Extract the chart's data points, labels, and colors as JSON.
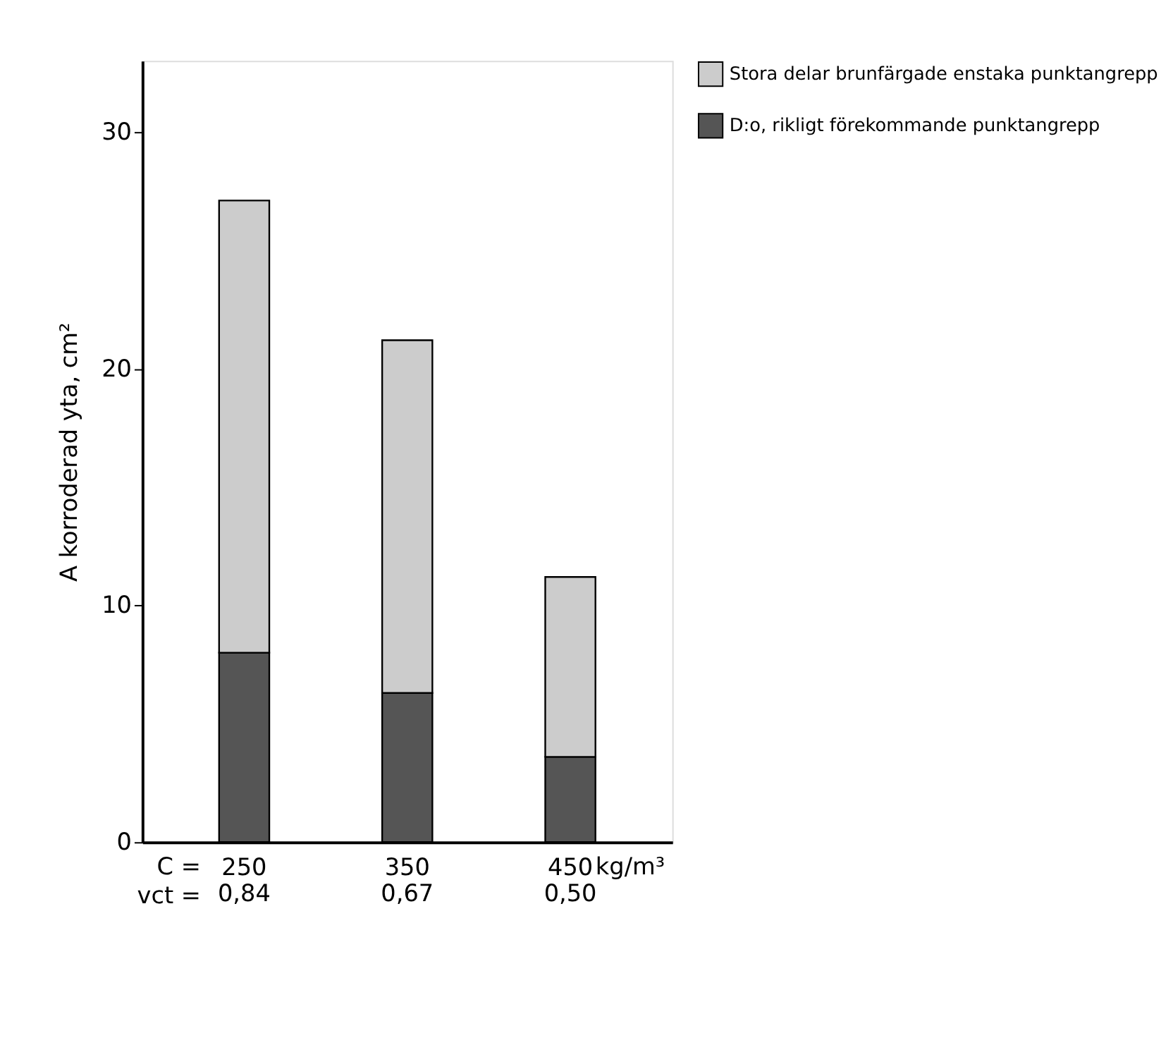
{
  "chart_data": {
    "type": "bar",
    "stacked": true,
    "ylabel": "A korroderad yta, cm²",
    "xlabel": "kg/m³",
    "categories": [
      "250\n0,84",
      "350\n0,67",
      "450\n0,50"
    ],
    "series": [
      {
        "name": "D:o, rikligt förekommande punktangrepp",
        "color": "#555555",
        "values": [
          8.0,
          6.3,
          3.6
        ]
      },
      {
        "name": "Stora delar brunfärgade enstaka punktangrepp",
        "color": "#cccccc",
        "values": [
          19.1,
          14.9,
          7.6
        ]
      }
    ],
    "ylim": [
      0,
      33
    ],
    "yticks": [
      0,
      10,
      20,
      30
    ],
    "grid": false,
    "legend": "top right",
    "annotations": [
      "C =",
      "vct ="
    ]
  }
}
